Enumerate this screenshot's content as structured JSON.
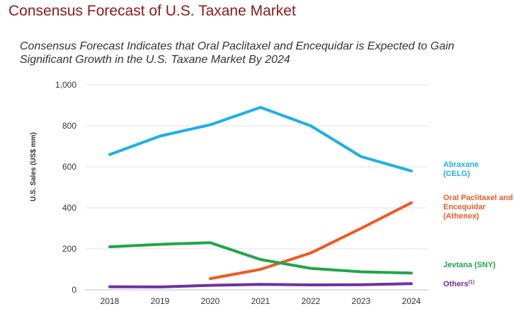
{
  "header": {
    "title": "Consensus Forecast of U.S. Taxane Market",
    "subtitle_line1": "Consensus Forecast Indicates that Oral Paclitaxel and Encequidar is Expected to Gain",
    "subtitle_line2": "Significant Growth in the U.S. Taxane Market By 2024"
  },
  "chart_data": {
    "type": "line",
    "x": [
      "2018",
      "2019",
      "2020",
      "2021",
      "2022",
      "2023",
      "2024"
    ],
    "ylabel": "U.S. Sales (US$ mm)",
    "ylim": [
      0,
      1000
    ],
    "yticks": [
      0,
      200,
      400,
      600,
      800,
      1000
    ],
    "ytick_labels": [
      "0",
      "200",
      "400",
      "600",
      "800",
      "1,000"
    ],
    "grid": true,
    "series": [
      {
        "name": "Abraxane (CELG)",
        "label_lines": [
          "Abraxane",
          "(CELG)"
        ],
        "color": "#1cb0e8",
        "values": [
          660,
          750,
          805,
          890,
          800,
          650,
          580
        ]
      },
      {
        "name": "Oral Paclitaxel and Encequidar (Athenex)",
        "label_lines": [
          "Oral Paclitaxel and",
          "Encequidar",
          "(Athenex)"
        ],
        "color": "#ef5a24",
        "values": [
          null,
          null,
          55,
          100,
          180,
          300,
          425
        ]
      },
      {
        "name": "Jevtana (SNY)",
        "label_lines": [
          "Jevtana (SNY)"
        ],
        "color": "#1fa64a",
        "values": [
          210,
          222,
          230,
          148,
          105,
          88,
          82
        ]
      },
      {
        "name": "Others(1)",
        "label_lines": [
          "Others"
        ],
        "label_sup": "(1)",
        "color": "#7030a0",
        "values": [
          15,
          14,
          22,
          27,
          24,
          25,
          30
        ]
      }
    ]
  }
}
